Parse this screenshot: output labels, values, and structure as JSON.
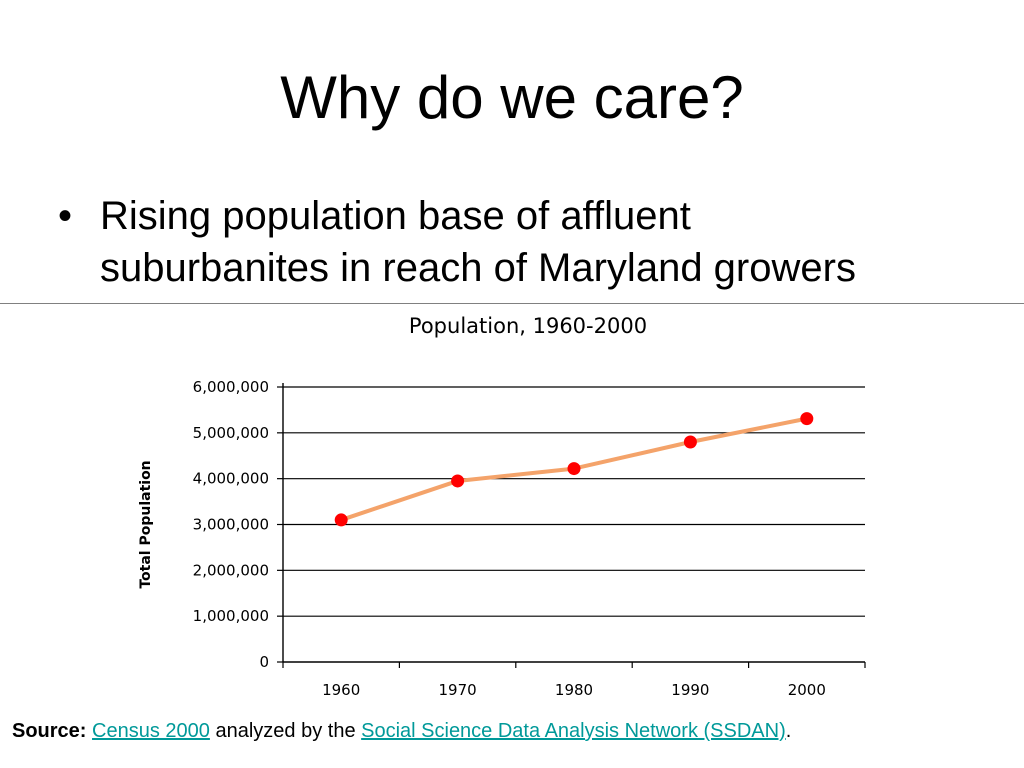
{
  "slide": {
    "title": "Why do we care?",
    "bullets": [
      {
        "marker": "•",
        "line1": "Rising population base of affluent",
        "line2": "suburbanites in reach of Maryland growers"
      }
    ]
  },
  "source": {
    "label": "Source:",
    "link1": "Census 2000",
    "middle": " analyzed by the ",
    "link2": "Social Science Data Analysis Network (SSDAN)",
    "end": "."
  },
  "colors": {
    "line": "#f4a36a",
    "point": "#ff0000",
    "link": "#009999"
  },
  "chart_data": {
    "type": "line",
    "title": "Population, 1960-2000",
    "xlabel": "",
    "ylabel": "Total Population",
    "categories": [
      "1960",
      "1970",
      "1980",
      "1990",
      "2000"
    ],
    "x": [
      1960,
      1970,
      1980,
      1990,
      2000
    ],
    "values": [
      3100000,
      3950000,
      4220000,
      4800000,
      5310000
    ],
    "ylim": [
      0,
      6000000
    ],
    "yticks": [
      0,
      1000000,
      2000000,
      3000000,
      4000000,
      5000000,
      6000000
    ],
    "ytick_labels": [
      "0",
      "1,000,000",
      "2,000,000",
      "3,000,000",
      "4,000,000",
      "5,000,000",
      "6,000,000"
    ],
    "grid": true,
    "legend": "none"
  }
}
